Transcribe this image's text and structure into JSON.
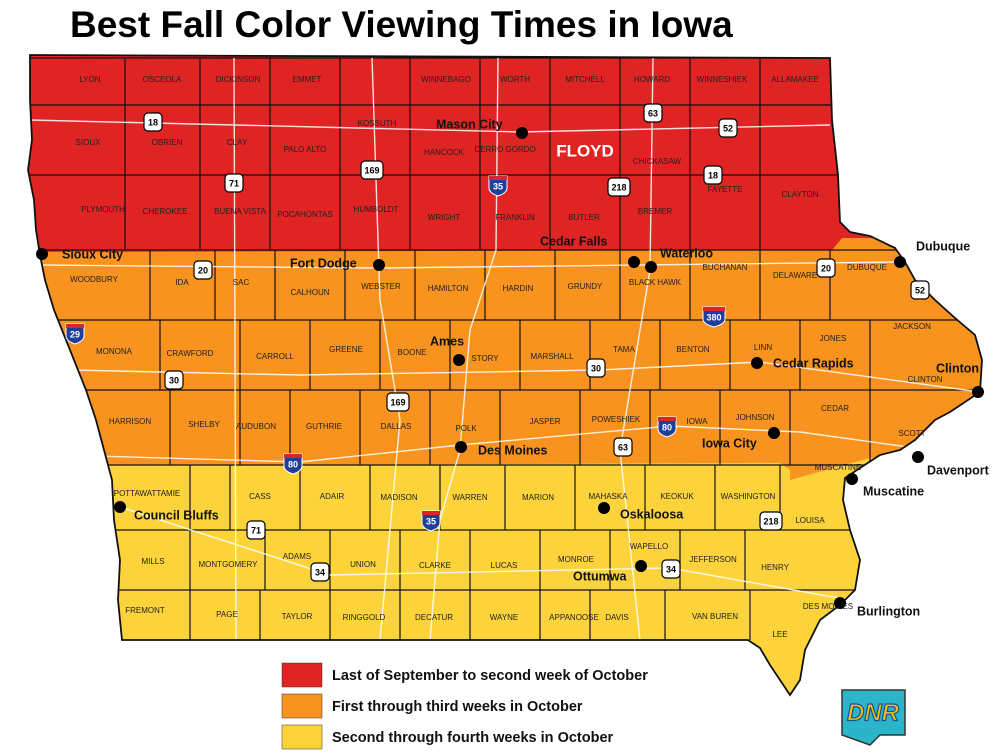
{
  "title": "Best Fall Color Viewing Times in Iowa",
  "counties": [
    "LYON",
    "OSCEOLA",
    "DICKINSON",
    "EMMET",
    "WINNEBAGO",
    "WORTH",
    "MITCHELL",
    "HOWARD",
    "WINNESHIEK",
    "ALLAMAKEE",
    "KOSSUTH",
    "SIOUX",
    "OBRIEN",
    "CLAY",
    "PALO ALTO",
    "HANCOCK",
    "CERRO GORDO",
    "CHICKASAW",
    "PLYMOUTH",
    "CHEROKEE",
    "BUENA VISTA",
    "POCAHONTAS",
    "HUMBOLDT",
    "WRIGHT",
    "FRANKLIN",
    "BUTLER",
    "BREMER",
    "FAYETTE",
    "CLAYTON",
    "WOODBURY",
    "IDA",
    "SAC",
    "CALHOUN",
    "WEBSTER",
    "HAMILTON",
    "HARDIN",
    "GRUNDY",
    "BLACK HAWK",
    "BUCHANAN",
    "DELAWARE",
    "DUBUQUE",
    "MONONA",
    "CRAWFORD",
    "CARROLL",
    "GREENE",
    "BOONE",
    "STORY",
    "MARSHALL",
    "TAMA",
    "BENTON",
    "LINN",
    "JONES",
    "JACKSON",
    "HARRISON",
    "SHELBY",
    "AUDUBON",
    "GUTHRIE",
    "DALLAS",
    "POLK",
    "JASPER",
    "POWESHIEK",
    "IOWA",
    "JOHNSON",
    "CEDAR",
    "CLINTON",
    "SCOTT",
    "MUSCATINE",
    "POTTAWATTAMIE",
    "CASS",
    "ADAIR",
    "MADISON",
    "WARREN",
    "MARION",
    "MAHASKA",
    "KEOKUK",
    "WASHINGTON",
    "LOUISA",
    "MILLS",
    "MONTGOMERY",
    "ADAMS",
    "UNION",
    "CLARKE",
    "LUCAS",
    "MONROE",
    "WAPELLO",
    "JEFFERSON",
    "HENRY",
    "DES MOINES",
    "FREMONT",
    "PAGE",
    "TAYLOR",
    "RINGGOLD",
    "DECATUR",
    "WAYNE",
    "APPANOOSE",
    "DAVIS",
    "VAN BUREN",
    "LEE"
  ],
  "highlight_county": "FLOYD",
  "cities": [
    "Mason City",
    "Cedar Falls",
    "Waterloo",
    "Sioux City",
    "Fort Dodge",
    "Dubuque",
    "Ames",
    "Cedar Rapids",
    "Clinton",
    "Des Moines",
    "Iowa City",
    "Davenport",
    "Muscatine",
    "Council Bluffs",
    "Oskaloosa",
    "Ottumwa",
    "Burlington"
  ],
  "highways": [
    "18",
    "63",
    "52",
    "169",
    "71",
    "35",
    "218",
    "18",
    "20",
    "20",
    "52",
    "29",
    "380",
    "30",
    "30",
    "169",
    "80",
    "63",
    "80",
    "35",
    "218",
    "71",
    "34",
    "34"
  ],
  "legend": [
    {
      "label": "Last of September to second week of October",
      "color": "#e02424"
    },
    {
      "label": "First through third weeks in October",
      "color": "#f7931e"
    },
    {
      "label": "Second through fourth weeks in October",
      "color": "#fdd33c"
    }
  ],
  "logo": "DNR"
}
